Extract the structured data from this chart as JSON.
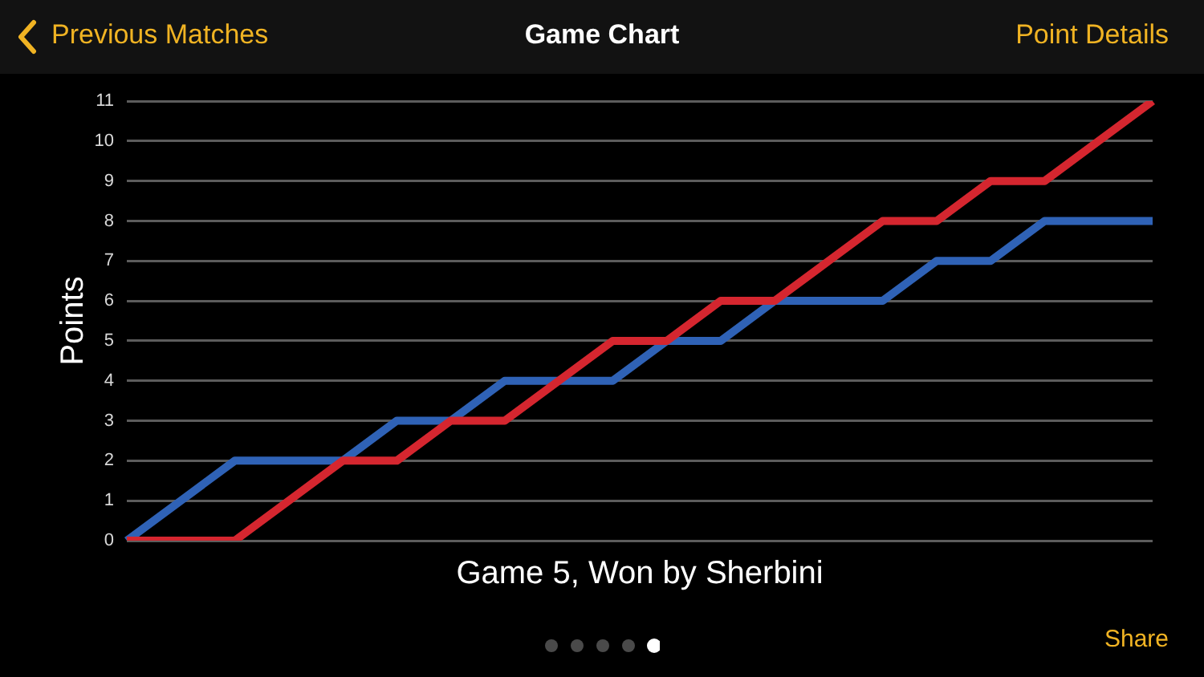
{
  "chart_data": {
    "type": "line",
    "title": "Game Chart",
    "xlabel": "Game 5, Won by Sherbini",
    "ylabel": "Points",
    "categories": [
      null,
      null,
      null,
      null,
      null,
      null,
      null,
      null,
      null,
      null,
      null,
      null,
      null,
      null,
      null,
      null,
      null,
      null,
      null,
      null
    ],
    "series": [
      {
        "color": "#2f62b6",
        "values": [
          0,
          1,
          2,
          2,
          2,
          3,
          3,
          4,
          4,
          4,
          5,
          5,
          6,
          6,
          6,
          7,
          7,
          8,
          8,
          8
        ]
      },
      {
        "color": "#d5262f",
        "values": [
          0,
          0,
          0,
          1,
          2,
          2,
          3,
          3,
          4,
          5,
          5,
          6,
          6,
          7,
          8,
          8,
          9,
          9,
          10,
          11
        ]
      }
    ],
    "ylim": [
      0,
      11
    ],
    "yticks": [
      0,
      1,
      2,
      3,
      4,
      5,
      6,
      7,
      8,
      9,
      10,
      11
    ],
    "grid": "y",
    "tick_labels": "y",
    "line_style": "solid",
    "annotations": [
      "Previous Matches",
      "Point Details",
      "Share"
    ]
  }
}
